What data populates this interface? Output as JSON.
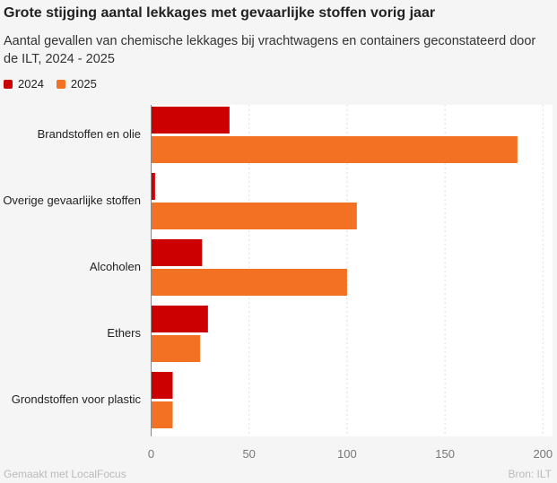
{
  "title": "Grote stijging aantal lekkages met gevaarlijke stoffen vorig jaar",
  "subtitle": "Aantal gevallen van chemische lekkages bij vrachtwagens en containers geconstateerd door de ILT, 2024 - 2025",
  "footer": {
    "left": "Gemaakt met LocalFocus",
    "right": "Bron:  ILT"
  },
  "chart_data": {
    "type": "bar",
    "orientation": "horizontal",
    "categories": [
      "Brandstoffen en olie",
      "Overige gevaarlijke stoffen",
      "Alcoholen",
      "Ethers",
      "Grondstoffen voor plastic"
    ],
    "series": [
      {
        "name": "2024",
        "color": "#cc0000",
        "values": [
          40,
          2,
          26,
          29,
          11
        ]
      },
      {
        "name": "2025",
        "color": "#f27122",
        "values": [
          187,
          105,
          100,
          25,
          11
        ]
      }
    ],
    "xlim": [
      0,
      205
    ],
    "ticks": [
      "0",
      "50",
      "100",
      "150",
      "200"
    ],
    "tick_values": [
      0,
      50,
      100,
      150,
      200
    ],
    "grid": true,
    "legend": "top-left"
  }
}
